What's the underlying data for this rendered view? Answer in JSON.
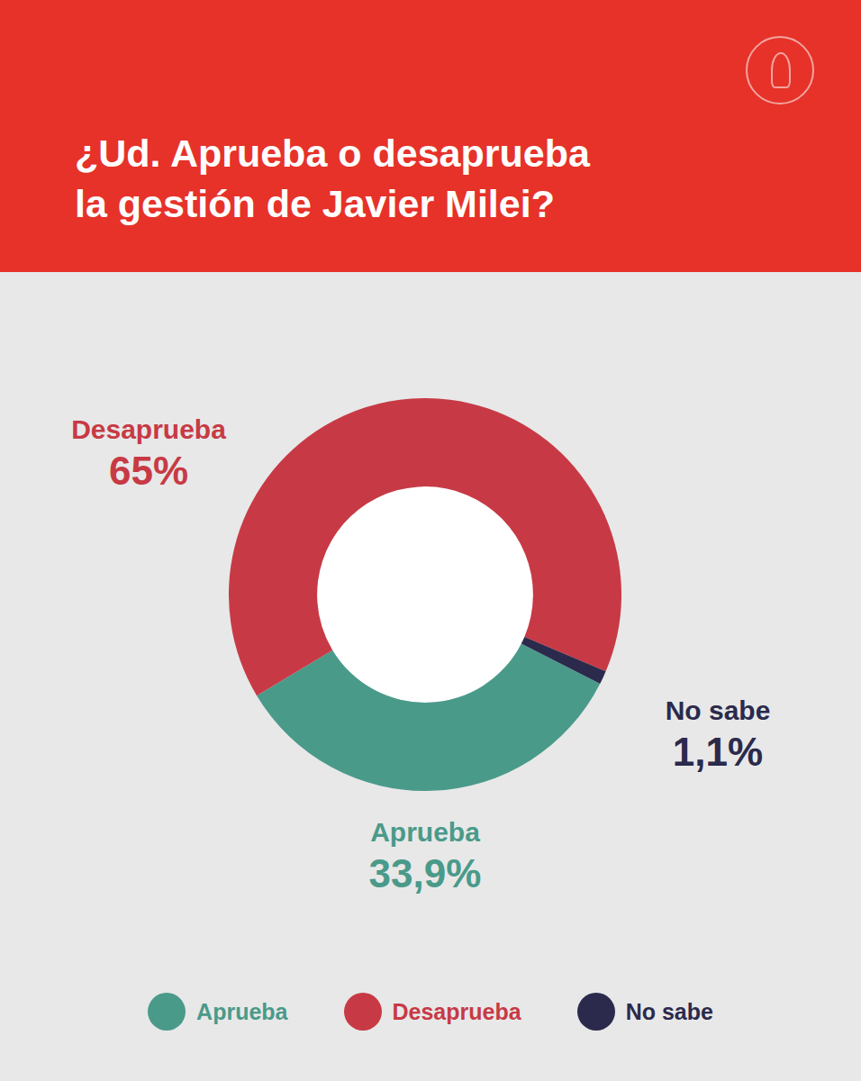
{
  "chart_data": {
    "type": "doughnut",
    "title": [
      "¿Ud. Aprueba o desaprueba",
      "la gestión de Javier Milei?"
    ],
    "categories": [
      "Aprueba",
      "Desaprueba",
      "No sabe"
    ],
    "values": [
      33.9,
      65,
      1.1
    ],
    "value_labels": [
      "33,9%",
      "65%",
      "1,1%"
    ],
    "colors": [
      "#4a9a8a",
      "#c73a45",
      "#2b2a4c"
    ],
    "data_labels": true,
    "legend": "bottom"
  }
}
